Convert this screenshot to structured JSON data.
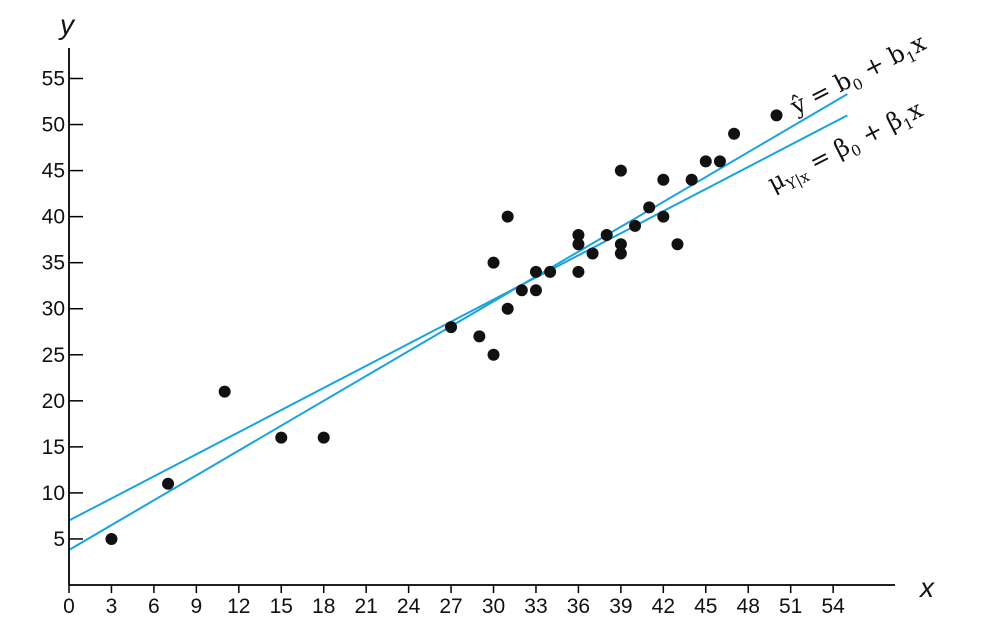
{
  "chart_data": {
    "type": "scatter",
    "xlabel": "x",
    "ylabel": "y",
    "xlim": [
      0,
      57
    ],
    "ylim": [
      0,
      57
    ],
    "x_ticks": [
      0,
      3,
      6,
      9,
      12,
      15,
      18,
      21,
      24,
      27,
      30,
      33,
      36,
      39,
      42,
      45,
      48,
      51,
      54
    ],
    "y_ticks": [
      5,
      10,
      15,
      20,
      25,
      30,
      35,
      40,
      45,
      50,
      55
    ],
    "grid": false,
    "points": [
      {
        "x": 3,
        "y": 5
      },
      {
        "x": 7,
        "y": 11
      },
      {
        "x": 11,
        "y": 21
      },
      {
        "x": 15,
        "y": 16
      },
      {
        "x": 18,
        "y": 16
      },
      {
        "x": 27,
        "y": 28
      },
      {
        "x": 29,
        "y": 27
      },
      {
        "x": 30,
        "y": 25
      },
      {
        "x": 30,
        "y": 35
      },
      {
        "x": 31,
        "y": 30
      },
      {
        "x": 31,
        "y": 40
      },
      {
        "x": 32,
        "y": 32
      },
      {
        "x": 33,
        "y": 32
      },
      {
        "x": 33,
        "y": 34
      },
      {
        "x": 34,
        "y": 34
      },
      {
        "x": 36,
        "y": 34
      },
      {
        "x": 36,
        "y": 37
      },
      {
        "x": 36,
        "y": 38
      },
      {
        "x": 37,
        "y": 36
      },
      {
        "x": 38,
        "y": 38
      },
      {
        "x": 39,
        "y": 36
      },
      {
        "x": 39,
        "y": 37
      },
      {
        "x": 39,
        "y": 45
      },
      {
        "x": 40,
        "y": 39
      },
      {
        "x": 41,
        "y": 41
      },
      {
        "x": 42,
        "y": 40
      },
      {
        "x": 42,
        "y": 44
      },
      {
        "x": 43,
        "y": 37
      },
      {
        "x": 44,
        "y": 44
      },
      {
        "x": 45,
        "y": 46
      },
      {
        "x": 46,
        "y": 46
      },
      {
        "x": 47,
        "y": 49
      },
      {
        "x": 50,
        "y": 51
      }
    ],
    "lines": [
      {
        "label": "ŷ = b0 + b1x",
        "intercept": 3.8,
        "slope": 0.9,
        "x_range": [
          0,
          55
        ],
        "color": "#1aa3dc"
      },
      {
        "label": "μY|x = β0 + β1x",
        "intercept": 7.0,
        "slope": 0.8,
        "x_range": [
          0,
          55
        ],
        "color": "#1aa3dc"
      }
    ],
    "annotations": {
      "fitted_line": {
        "base": "ŷ",
        "eq1": " = b",
        "sub1": "0",
        "eq2": " + b",
        "sub2": "1",
        "eq3": "x"
      },
      "true_line": {
        "base": "μ",
        "sub0": "Y|x",
        "eq1": " = β",
        "sub1": "0",
        "eq2": " + β",
        "sub2": "1",
        "eq3": "x"
      }
    }
  }
}
